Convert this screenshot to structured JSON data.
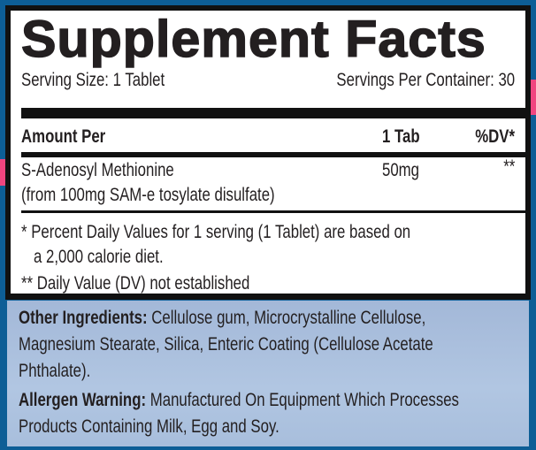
{
  "title": "Supplement Facts",
  "serving_size": "Serving Size: 1 Tablet",
  "servings_per_container": "Servings Per Container: 30",
  "header": {
    "amount": "Amount Per",
    "per": "1 Tab",
    "dv": "%DV*"
  },
  "ingredients": [
    {
      "name": "S-Adenosyl Methionine",
      "source": "(from 100mg SAM-e tosylate disulfate)",
      "amount": "50mg",
      "dv": "**"
    }
  ],
  "footnotes": {
    "line1": "* Percent Daily Values for 1 serving (1 Tablet) are based on",
    "line2": "a 2,000 calorie diet.",
    "line3": "** Daily Value (DV) not established"
  },
  "other": {
    "label": "Other Ingredients:",
    "line1": "Cellulose gum, Microcrystalline Cellulose,",
    "line2": "Magnesium Stearate, Silica, Enteric Coating (Cellulose Acetate",
    "line3": "Phthalate)."
  },
  "allergen": {
    "label": "Allergen Warning:",
    "line1": "Manufactured On Equipment Which Processes",
    "line2": "Products Containing Milk, Egg and Soy."
  },
  "colors": {
    "background": "#0d5e96",
    "panel": "#a9bfdc",
    "accent": "#f0457f"
  }
}
